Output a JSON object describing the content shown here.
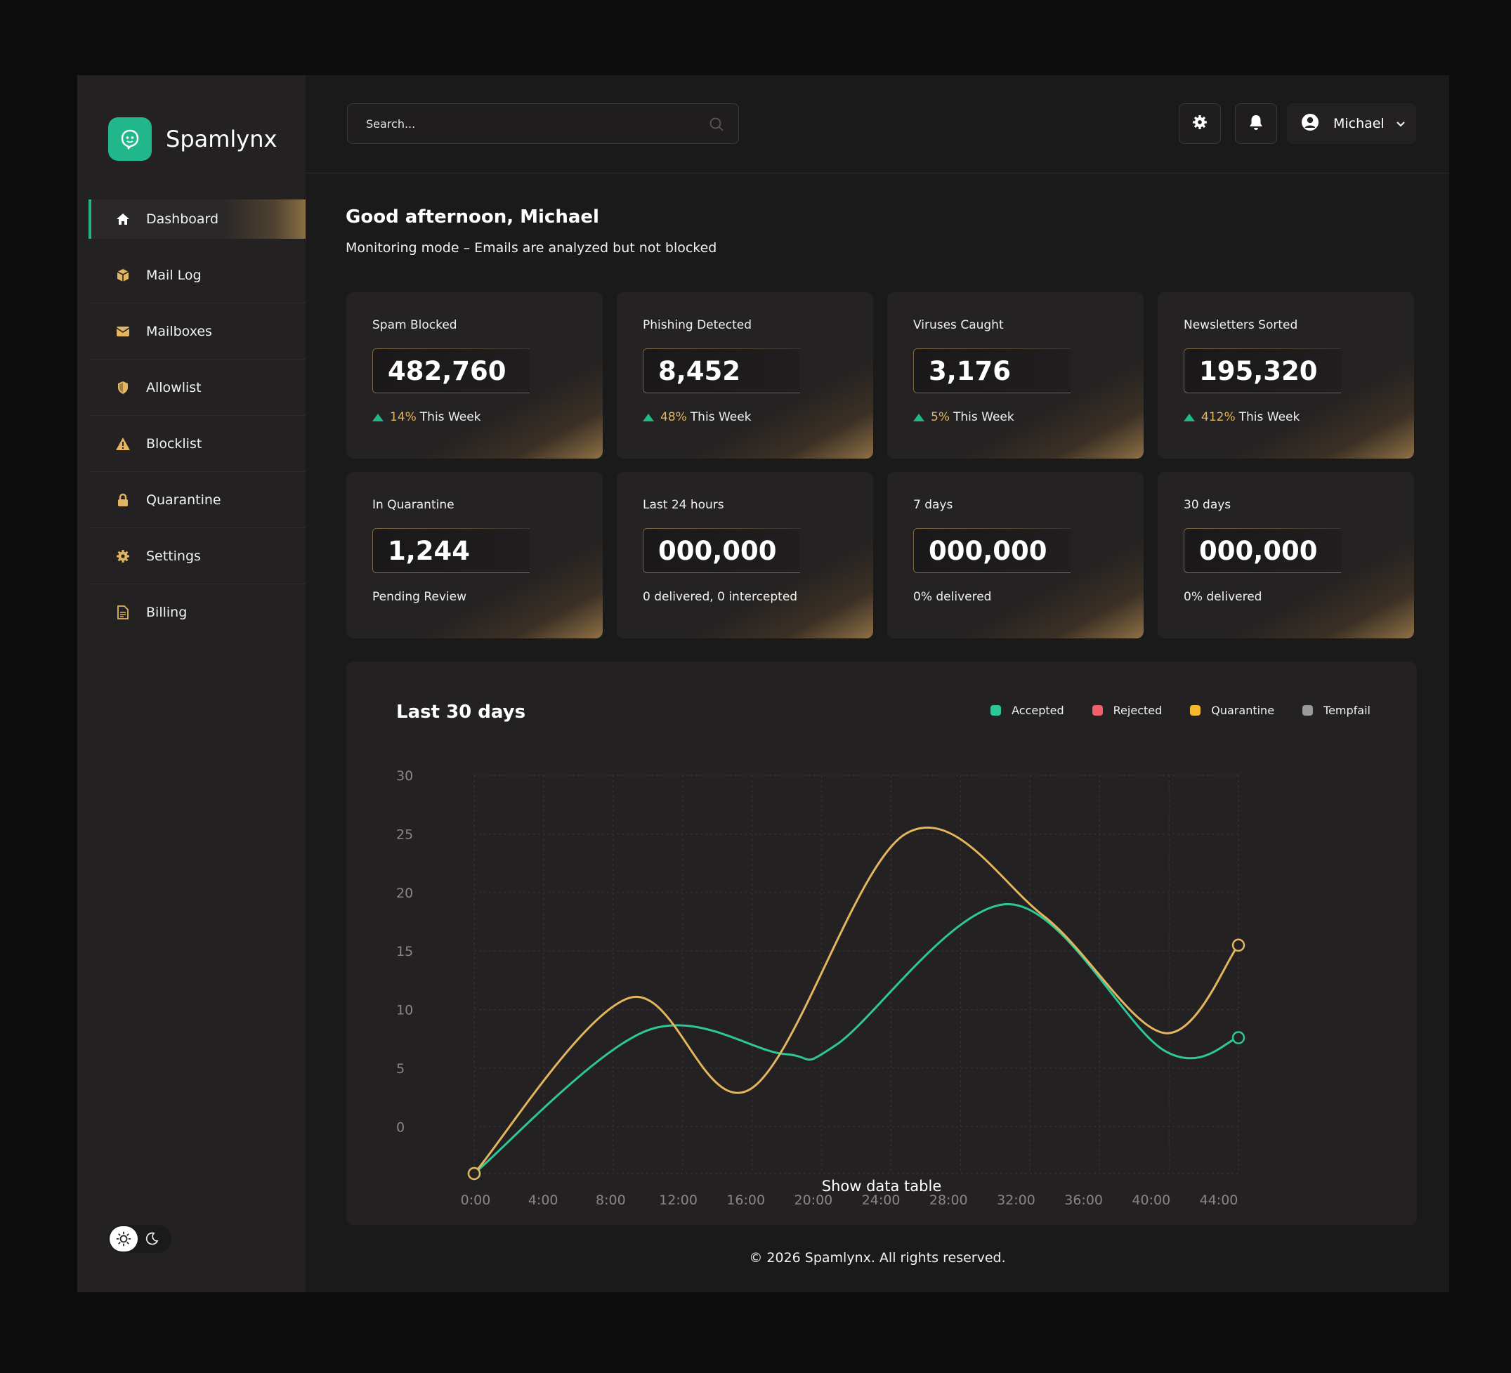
{
  "app": {
    "name": "Spamlynx"
  },
  "sidebar": {
    "items": [
      {
        "label": "Dashboard",
        "icon": "home-icon",
        "active": true
      },
      {
        "label": "Mail Log",
        "icon": "box-icon"
      },
      {
        "label": "Mailboxes",
        "icon": "envelope-icon"
      },
      {
        "label": "Allowlist",
        "icon": "shield-icon"
      },
      {
        "label": "Blocklist",
        "icon": "warning-icon"
      },
      {
        "label": "Quarantine",
        "icon": "lock-icon"
      },
      {
        "label": "Settings",
        "icon": "gear-icon"
      },
      {
        "label": "Billing",
        "icon": "document-icon"
      }
    ]
  },
  "topbar": {
    "search_placeholder": "Search...",
    "user_name": "Michael"
  },
  "greeting": {
    "title": "Good afternoon, Michael",
    "subtitle": "Monitoring mode – Emails are analyzed but not blocked"
  },
  "stats_row1": [
    {
      "label": "Spam Blocked",
      "value": "482,760",
      "pct": "14%",
      "period": "This Week"
    },
    {
      "label": "Phishing Detected",
      "value": "8,452",
      "pct": "48%",
      "period": "This Week"
    },
    {
      "label": "Viruses Caught",
      "value": "3,176",
      "pct": "5%",
      "period": "This Week"
    },
    {
      "label": "Newsletters Sorted",
      "value": "195,320",
      "pct": "412%",
      "period": "This Week"
    }
  ],
  "stats_row2": [
    {
      "label": "In Quarantine",
      "value": "1,244",
      "sub": "Pending Review"
    },
    {
      "label": "Last 24 hours",
      "value": "000,000",
      "sub": "0 delivered, 0 intercepted"
    },
    {
      "label": "7 days",
      "value": "000,000",
      "sub": "0% delivered"
    },
    {
      "label": "30 days",
      "value": "000,000",
      "sub": "0% delivered"
    }
  ],
  "colors": {
    "accent": "#21b78a",
    "gold": "#e3b55e",
    "accepted": "#2ec79a",
    "rejected": "#f0606a",
    "quarantine": "#f5b82e",
    "tempfail": "#9a9a9a"
  },
  "chart_data": {
    "type": "line",
    "title": "Last 30 days",
    "x": [
      "0:00",
      "4:00",
      "8:00",
      "12:00",
      "16:00",
      "20:00",
      "24:00",
      "28:00",
      "32:00",
      "36:00",
      "40:00",
      "44:00"
    ],
    "y_ticks": [
      30,
      25,
      20,
      15,
      10,
      5,
      0
    ],
    "ylim": [
      -4,
      30
    ],
    "legend": [
      "Accepted",
      "Rejected",
      "Quarantine",
      "Tempfail"
    ],
    "legend_position": "top-right",
    "series": [
      {
        "name": "Accepted",
        "color": "#2ec79a",
        "points": [
          [
            0,
            -4
          ],
          [
            10,
            8.2
          ],
          [
            18,
            6.2
          ],
          [
            21,
            7.0
          ],
          [
            31,
            19
          ],
          [
            40,
            6.5
          ],
          [
            44.3,
            7.6
          ]
        ]
      },
      {
        "name": "Quarantine",
        "color": "#e3b55e",
        "points": [
          [
            0,
            -4
          ],
          [
            9,
            11
          ],
          [
            16,
            3.2
          ],
          [
            25,
            25
          ],
          [
            33,
            18
          ],
          [
            40,
            8
          ],
          [
            44.3,
            15.5
          ]
        ]
      }
    ],
    "grid": true,
    "footer_link": "Show data table"
  },
  "footer": {
    "text": "© 2026 Spamlynx. All rights reserved."
  }
}
